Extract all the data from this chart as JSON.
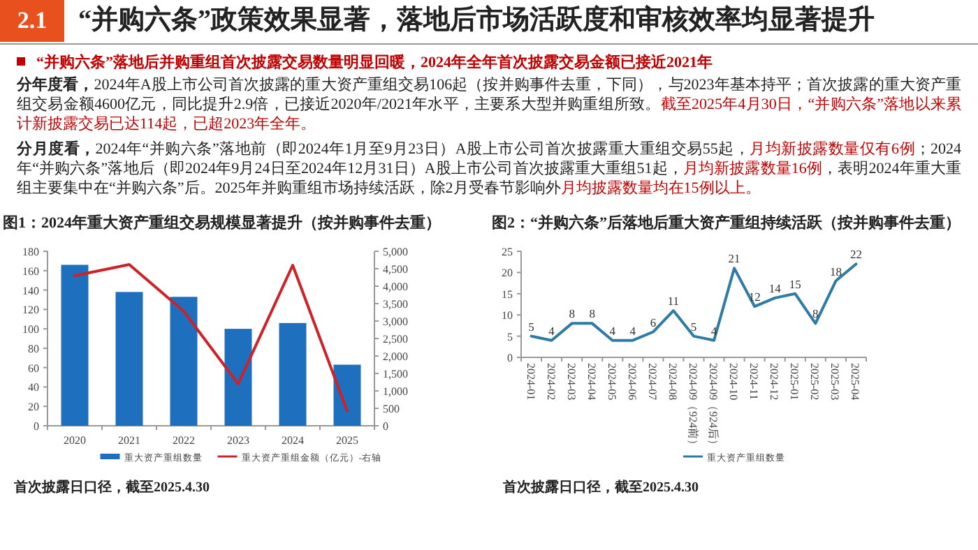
{
  "chart_data": [
    {
      "type": "other",
      "title": "“并购六条”政策效果显著，落地后市场活跃度和审核效率均显著提升",
      "subtitle": "“并购六条”落地后并购重组首次披露交易数量明显回暖，2024年全年首次披露交易金额已接近2021年",
      "annotations": [
        "2.1",
        "分年度看，",
        "2024年A股上市公司首次披露的重大资产重组交易106起（按并购事件去重，下同），与2023年基本持平；首次披露的重大资产重组交易金额4600亿元，同比提升2.9倍，已接近2020年/2021年水平，主要系大型并购重组所致。",
        "截至2025年4月30日，“并购六条”落地以来累计新披露交易已达114起，已超2023年全年。",
        "分月度看，",
        "2024年“并购六条”落地前（即2024年1月至9月23日）A股上市公司首次披露重大重组交易55起，",
        "月均新披露数量仅有6例",
        "；2024年“并购六条”落地后（即2024年9月24日至2024年12月31日）A股上市公司首次披露重大重组51起，",
        "月均新披露数量16例",
        "，表明2024年重大重组主要集中在“并购六条”后。2025年并购重组市场持续活跃，除2月受春节影响外",
        "月均披露数量均在15例以上。"
      ]
    },
    {
      "type": "bar",
      "title": "图1：2024年重大资产重组交易规模显著提升（按并购事件去重）",
      "categories": [
        "2020",
        "2021",
        "2022",
        "2023",
        "2024",
        "2025"
      ],
      "series": [
        {
          "name": "重大资产重组数量",
          "color": "#1f6fbf",
          "values": [
            166,
            138,
            133,
            100,
            106,
            63
          ]
        },
        {
          "name": "重大资产重组金额（亿元）-右轴",
          "type": "line",
          "axis": "y2",
          "color": "#cc2229",
          "values": [
            4300,
            4620,
            3280,
            1200,
            4600,
            420
          ]
        }
      ],
      "ylim": [
        0,
        180
      ],
      "yticks": [
        0,
        20,
        40,
        60,
        80,
        100,
        120,
        140,
        160,
        180
      ],
      "y2lim": [
        0,
        5000
      ],
      "y2ticks": [
        0,
        500,
        {
          "value": 1000,
          "label": "1,000"
        },
        {
          "value": 1500,
          "label": "1,500"
        },
        {
          "value": 2000,
          "label": "2,000"
        },
        {
          "value": 2500,
          "label": "2,500"
        },
        {
          "value": 3000,
          "label": "3,000"
        },
        {
          "value": 3500,
          "label": "3,500"
        },
        {
          "value": 4000,
          "label": "4,000"
        },
        {
          "value": 4500,
          "label": "4,500"
        },
        {
          "value": 5000,
          "label": "5,000"
        }
      ],
      "legend": "bottom",
      "annotations": [
        "首次披露日口径，截至2025.4.30"
      ]
    },
    {
      "type": "line",
      "title": "图2：“并购六条”后落地后重大资产重组持续活跃（按并购事件去重）",
      "categories": [
        "2024-01",
        "2024-02",
        "2024-03",
        "2024-04",
        "2024-05",
        "2024-06",
        "2024-07",
        "2024-08",
        "2024-09（924前）",
        "2024-09（924后）",
        "2024-10",
        "2024-11",
        "2024-12",
        "2025-01",
        "2025-02",
        "2025-03",
        "2025-04"
      ],
      "series": [
        {
          "name": "重大资产重组数量",
          "color": "#2e7ba6",
          "values": [
            5,
            4,
            8,
            8,
            4,
            4,
            6,
            11,
            5,
            4,
            21,
            12,
            14,
            15,
            8,
            18,
            22
          ]
        }
      ],
      "ylim": [
        0,
        25
      ],
      "yticks": [
        0,
        5,
        10,
        15,
        20,
        25
      ],
      "data_labels": true,
      "legend": "bottom",
      "annotations": [
        "首次披露日口径，截至2025.4.30"
      ]
    }
  ]
}
